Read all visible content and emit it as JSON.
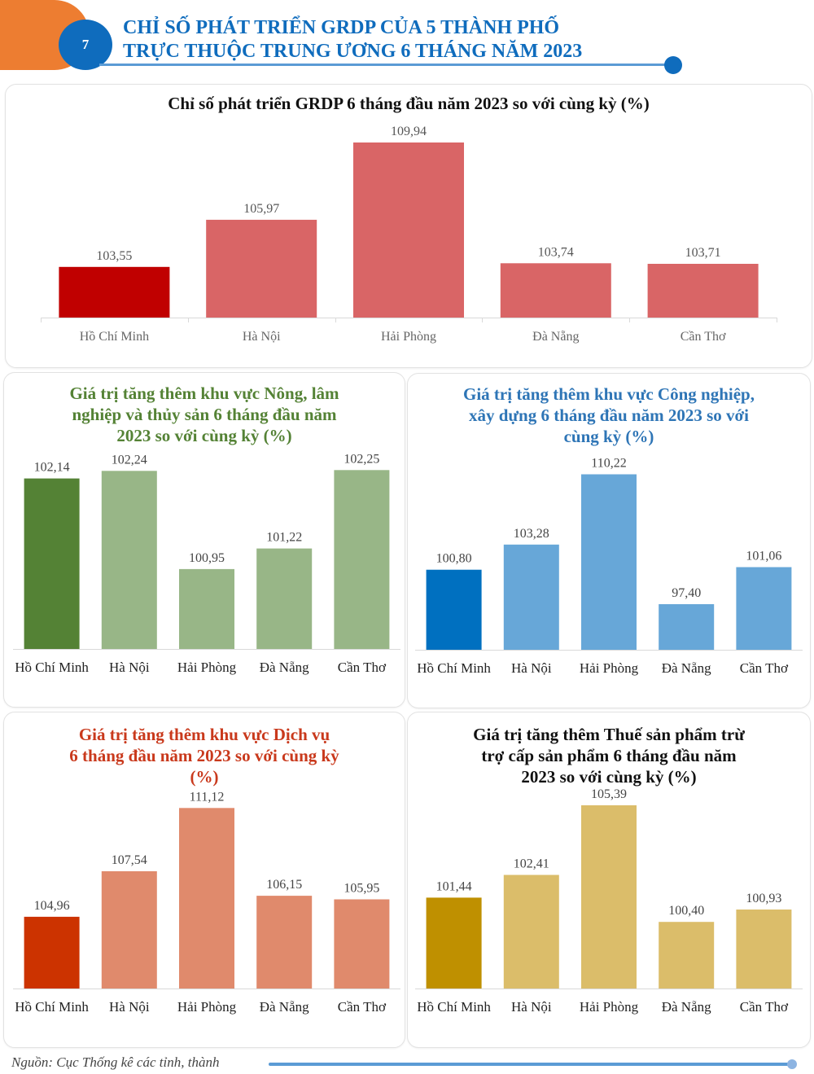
{
  "header": {
    "number": "7",
    "title_line1": "CHỈ SỐ PHÁT TRIỂN GRDP CỦA 5 THÀNH PHỐ",
    "title_line2": "TRỰC THUỘC TRUNG ƯƠNG 6 THÁNG NĂM 2023",
    "accent_orange": "#ed7d31",
    "accent_blue": "#0f6cbd"
  },
  "footer": {
    "source": "Nguồn: Cục Thống kê các tỉnh, thành"
  },
  "chart_data": [
    {
      "id": "grdp",
      "type": "bar",
      "title": "Chỉ số phát triển GRDP 6 tháng đầu năm 2023 so với cùng kỳ (%)",
      "title_color": "#111111",
      "categories": [
        "Hồ Chí Minh",
        "Hà Nội",
        "Hải Phòng",
        "Đà Nẵng",
        "Cần Thơ"
      ],
      "values": [
        103.55,
        105.97,
        109.94,
        103.74,
        103.71
      ],
      "labels": [
        "103,55",
        "105,97",
        "109,94",
        "103,74",
        "103,71"
      ],
      "colors": [
        "#c00000",
        "#d96566",
        "#d96566",
        "#d96566",
        "#d96566"
      ],
      "ylim": [
        100.95,
        110.4
      ],
      "xlabel": "",
      "ylabel": "",
      "grid": false,
      "legend": "none"
    },
    {
      "id": "agriculture",
      "type": "bar",
      "title": "Giá trị tăng thêm khu vực Nông, lâm nghiệp và thủy sản 6 tháng đầu năm 2023 so với cùng kỳ (%)",
      "title_lines": [
        "Giá trị tăng thêm khu vực Nông, lâm",
        "nghiệp và thủy sản 6 tháng đầu năm",
        "2023 so với cùng kỳ (%)"
      ],
      "title_color": "#548235",
      "categories": [
        "Hồ Chí Minh",
        "Hà Nội",
        "Hải Phòng",
        "Đà Nẵng",
        "Cần Thơ"
      ],
      "values": [
        102.14,
        102.24,
        100.95,
        101.22,
        102.25
      ],
      "labels": [
        "102,14",
        "102,24",
        "100,95",
        "101,22",
        "102,25"
      ],
      "colors": [
        "#548235",
        "#98b687",
        "#98b687",
        "#98b687",
        "#98b687"
      ],
      "ylim": [
        99.9,
        102.35
      ],
      "xlabel": "",
      "ylabel": "",
      "grid": false,
      "legend": "none"
    },
    {
      "id": "industry",
      "type": "bar",
      "title": "Giá trị tăng thêm khu vực Công nghiệp, xây dựng 6 tháng đầu năm 2023 so với cùng kỳ (%)",
      "title_lines": [
        "Giá trị tăng thêm khu vực Công nghiệp,",
        "xây dựng 6 tháng đầu năm 2023 so với",
        "cùng kỳ (%)"
      ],
      "title_color": "#2e75b6",
      "categories": [
        "Hồ Chí Minh",
        "Hà Nội",
        "Hải Phòng",
        "Đà Nẵng",
        "Cần Thơ"
      ],
      "values": [
        100.8,
        103.28,
        110.22,
        97.4,
        101.06
      ],
      "labels": [
        "100,80",
        "103,28",
        "110,22",
        "97,40",
        "101,06"
      ],
      "colors": [
        "#0070c0",
        "#67a7d8",
        "#67a7d8",
        "#67a7d8",
        "#67a7d8"
      ],
      "ylim": [
        92.9,
        110.9
      ],
      "xlabel": "",
      "ylabel": "",
      "grid": false,
      "legend": "none"
    },
    {
      "id": "services",
      "type": "bar",
      "title": "Giá trị tăng thêm khu vực Dịch vụ 6 tháng đầu năm 2023 so với cùng kỳ (%)",
      "title_lines": [
        "Giá trị tăng thêm khu vực Dịch vụ",
        "6 tháng đầu năm 2023 so với cùng kỳ",
        "(%)"
      ],
      "title_color": "#c9391c",
      "categories": [
        "Hồ Chí Minh",
        "Hà Nội",
        "Hải Phòng",
        "Đà Nẵng",
        "Cần Thơ"
      ],
      "values": [
        104.96,
        107.54,
        111.12,
        106.15,
        105.95
      ],
      "labels": [
        "104,96",
        "107,54",
        "111,12",
        "106,15",
        "105,95"
      ],
      "colors": [
        "#cc3300",
        "#e08a6c",
        "#e08a6c",
        "#e08a6c",
        "#e08a6c"
      ],
      "ylim": [
        100.9,
        111.55
      ],
      "xlabel": "",
      "ylabel": "",
      "grid": false,
      "legend": "none"
    },
    {
      "id": "product_tax",
      "type": "bar",
      "title": "Giá trị tăng thêm Thuế sản phẩm trừ trợ cấp sản phẩm 6 tháng đầu năm 2023 so với cùng kỳ (%)",
      "title_lines": [
        "Giá trị tăng thêm Thuế sản phẩm trừ",
        "trợ cấp sản phẩm 6 tháng đầu năm",
        "2023 so với cùng kỳ (%)"
      ],
      "title_color": "#111111",
      "categories": [
        "Hồ Chí Minh",
        "Hà Nội",
        "Hải Phòng",
        "Đà Nẵng",
        "Cần Thơ"
      ],
      "values": [
        101.44,
        102.41,
        105.39,
        100.4,
        100.93
      ],
      "labels": [
        "101,44",
        "102,41",
        "105,39",
        "100,40",
        "100,93"
      ],
      "colors": [
        "#bf9000",
        "#dbbd6a",
        "#dbbd6a",
        "#dbbd6a",
        "#dbbd6a"
      ],
      "ylim": [
        97.55,
        105.6
      ],
      "xlabel": "",
      "ylabel": "",
      "grid": false,
      "legend": "none"
    }
  ]
}
